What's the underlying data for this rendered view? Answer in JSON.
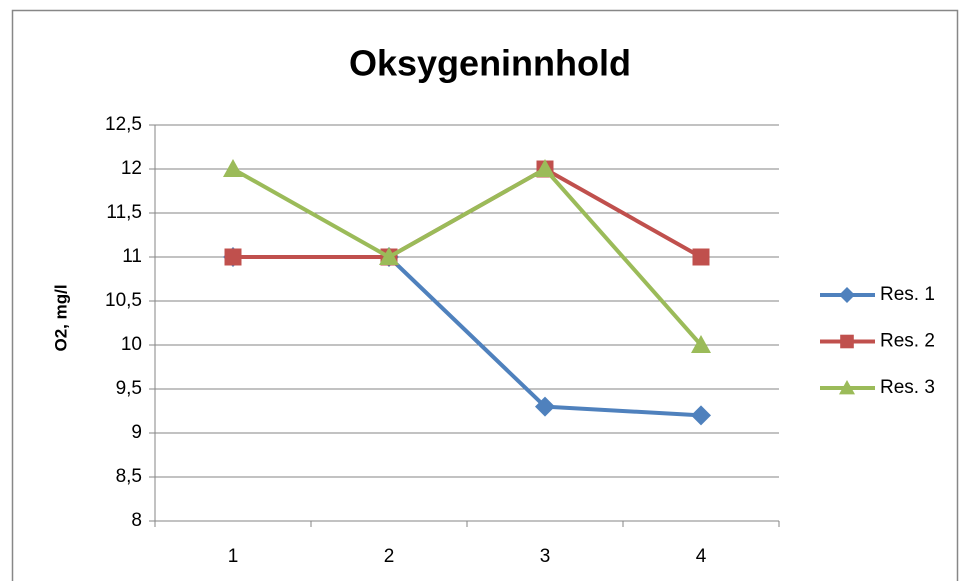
{
  "chart_data": {
    "type": "line",
    "title": "Oksygeninnhold",
    "y_label": "O2, mg/l",
    "categories": [
      "1",
      "2",
      "3",
      "4"
    ],
    "series": [
      {
        "name": "Res. 1",
        "color": "#4f81bd",
        "marker": "diamond",
        "values": [
          11,
          11,
          9.3,
          9.2
        ]
      },
      {
        "name": "Res. 2",
        "color": "#c0504d",
        "marker": "square",
        "values": [
          11,
          11,
          12,
          11
        ]
      },
      {
        "name": "Res. 3",
        "color": "#9bbb59",
        "marker": "triangle",
        "values": [
          12,
          11,
          12,
          10
        ]
      }
    ],
    "ylim": [
      8,
      12.5
    ],
    "yticks": [
      8,
      {
        "value": 8.5,
        "label": "8,5"
      },
      9,
      {
        "value": 9.5,
        "label": "9,5"
      },
      10,
      {
        "value": 10.5,
        "label": "10,5"
      },
      11,
      {
        "value": 11.5,
        "label": "11,5"
      },
      12,
      {
        "value": 12.5,
        "label": "12,5"
      }
    ],
    "grid": true,
    "legend": "right"
  }
}
